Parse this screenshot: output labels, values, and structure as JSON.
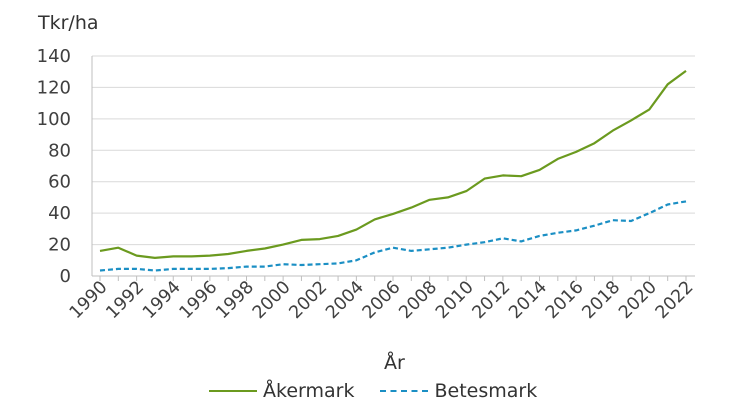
{
  "chart_data": {
    "type": "line",
    "unit_label": "Tkr/ha",
    "xlabel": "År",
    "ylabel": "",
    "x": [
      1990,
      1991,
      1992,
      1993,
      1994,
      1995,
      1996,
      1997,
      1998,
      1999,
      2000,
      2001,
      2002,
      2003,
      2004,
      2005,
      2006,
      2007,
      2008,
      2009,
      2010,
      2011,
      2012,
      2013,
      2014,
      2015,
      2016,
      2017,
      2018,
      2019,
      2020,
      2021,
      2022
    ],
    "xticks": [
      "1990",
      "1992",
      "1994",
      "1996",
      "1998",
      "2000",
      "2002",
      "2004",
      "2006",
      "2008",
      "2010",
      "2012",
      "2014",
      "2016",
      "2018",
      "2020",
      "2022"
    ],
    "yticks": [
      "0",
      "20",
      "40",
      "60",
      "80",
      "100",
      "120",
      "140"
    ],
    "ylim": [
      0,
      140
    ],
    "xlim": [
      1990,
      2022
    ],
    "grid": "horizontal",
    "legend_position": "bottom",
    "series": [
      {
        "name": "Åkermark",
        "color": "#6b9a1f",
        "style": "solid",
        "values": [
          16,
          18,
          13,
          11.5,
          12.5,
          12.5,
          13,
          14,
          16,
          17.5,
          20,
          23,
          23.5,
          25.5,
          29.5,
          36,
          39.5,
          43.5,
          48.5,
          50,
          54,
          62,
          64,
          63.5,
          67.5,
          74.5,
          79,
          84.5,
          92.5,
          99,
          106,
          122,
          130.5
        ]
      },
      {
        "name": "Betesmark",
        "color": "#1b8fc4",
        "style": "dashed",
        "values": [
          3.5,
          4.5,
          4.5,
          3.5,
          4.5,
          4.5,
          4.5,
          5,
          6,
          6,
          7.5,
          7,
          7.5,
          8,
          10,
          15,
          18,
          16,
          17,
          18,
          20,
          21.5,
          24,
          22,
          25.5,
          27.5,
          29,
          32,
          35.5,
          35,
          40,
          45.5,
          47.5
        ]
      }
    ]
  }
}
